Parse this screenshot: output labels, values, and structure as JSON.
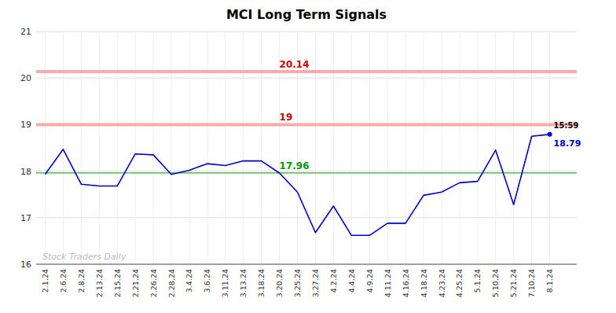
{
  "chart_data": {
    "type": "line",
    "title": "MCI Long Term Signals",
    "categories": [
      "2.1.24",
      "2.6.24",
      "2.8.24",
      "2.13.24",
      "2.15.24",
      "2.21.24",
      "2.26.24",
      "2.28.24",
      "3.4.24",
      "3.6.24",
      "3.11.24",
      "3.13.24",
      "3.18.24",
      "3.20.24",
      "3.25.24",
      "3.27.24",
      "4.2.24",
      "4.4.24",
      "4.9.24",
      "4.11.24",
      "4.16.24",
      "4.18.24",
      "4.23.24",
      "4.25.24",
      "5.1.24",
      "5.10.24",
      "5.21.24",
      "7.10.24",
      "8.1.24"
    ],
    "values": [
      17.93,
      18.47,
      17.72,
      17.68,
      17.68,
      18.37,
      18.35,
      17.93,
      18.02,
      18.16,
      18.12,
      18.22,
      18.22,
      17.96,
      17.55,
      16.68,
      17.25,
      16.62,
      16.62,
      16.88,
      16.88,
      17.48,
      17.55,
      17.75,
      17.78,
      18.45,
      17.28,
      18.75,
      18.79
    ],
    "color": "#0000cc",
    "reference_lines": [
      {
        "value": 17.96,
        "label": "17.96",
        "color": "#33aa33",
        "label_color": "#009900"
      },
      {
        "value": 19.0,
        "label": "19",
        "color": "#ffaaaa",
        "label_color": "#cc0000"
      },
      {
        "value": 20.14,
        "label": "20.14",
        "color": "#ffaaaa",
        "label_color": "#cc0000"
      }
    ],
    "last_label": "18.79",
    "last_time_label": "15:59",
    "watermark": "Stock Traders Daily",
    "ylim": [
      16,
      21
    ],
    "yticks": [
      16,
      17,
      18,
      19,
      20,
      21
    ],
    "grid": true
  }
}
